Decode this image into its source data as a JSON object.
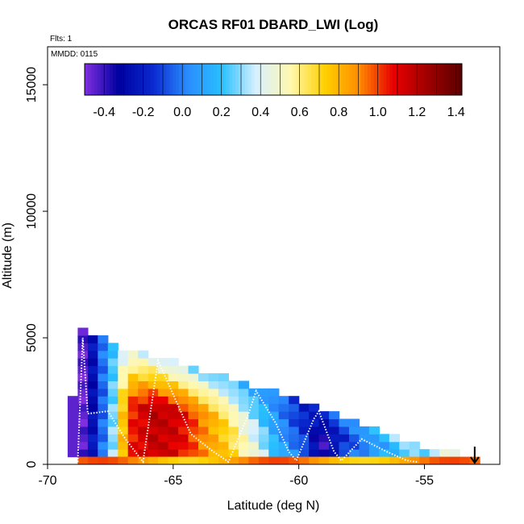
{
  "chart_data": {
    "type": "heatmap",
    "title": "ORCAS RF01 DBARD_LWI (Log)",
    "annotations": {
      "flights": "Flts: 1",
      "mmdd": "MMDD: 0115"
    },
    "xlabel": "Latitude (deg N)",
    "ylabel": "Altitude (m)",
    "xlim": [
      -70,
      -52
    ],
    "ylim": [
      0,
      16500
    ],
    "x_ticks": [
      -70,
      -65,
      -60,
      -55
    ],
    "x_tick_labels": [
      "-70",
      "-65",
      "-60",
      "-55"
    ],
    "y_ticks": [
      0,
      5000,
      10000,
      15000
    ],
    "y_tick_labels": [
      "0",
      "5000",
      "10000",
      "15000"
    ],
    "colorbar": {
      "range": [
        -0.5,
        1.43
      ],
      "ticks": [
        -0.4,
        -0.2,
        0.0,
        0.2,
        0.4,
        0.6,
        0.8,
        1.0,
        1.2,
        1.4
      ],
      "tick_labels": [
        "-0.4",
        "-0.2",
        "0.0",
        "0.2",
        "0.4",
        "0.6",
        "0.8",
        "1.0",
        "1.2",
        "1.4"
      ],
      "colors": [
        "#7f2fe0",
        "#0000a0",
        "#0a2ad0",
        "#2a8cff",
        "#28c0ff",
        "#d8f0ff",
        "#fff8b0",
        "#ffd000",
        "#ff8c00",
        "#e80000",
        "#a00000",
        "#5a0000"
      ]
    },
    "grid": {
      "lat_step": 0.4,
      "alt_step": 300
    },
    "envelope": [
      [
        -68.8,
        5200
      ],
      [
        -68.0,
        4900
      ],
      [
        -67.0,
        4500
      ],
      [
        -66.0,
        4250
      ],
      [
        -65.0,
        3950
      ],
      [
        -64.0,
        3650
      ],
      [
        -63.0,
        3350
      ],
      [
        -62.0,
        3050
      ],
      [
        -61.0,
        2750
      ],
      [
        -60.0,
        2400
      ],
      [
        -59.0,
        2050
      ],
      [
        -58.0,
        1700
      ],
      [
        -57.0,
        1300
      ],
      [
        -56.0,
        950
      ],
      [
        -55.0,
        600
      ],
      [
        -54.0,
        350
      ],
      [
        -53.0,
        200
      ]
    ],
    "value_profile": {
      "lat": [
        -69.0,
        -68.6,
        -68.0,
        -67.5,
        -67.0,
        -66.0,
        -65.0,
        -64.0,
        -63.0,
        -62.0,
        -61.0,
        -60.0,
        -59.3,
        -58.6,
        -57.5,
        -56.0,
        -54.0
      ],
      "low_layer": [
        -0.45,
        -0.2,
        0.1,
        0.5,
        1.15,
        1.25,
        1.2,
        1.0,
        0.85,
        0.6,
        0.3,
        0.1,
        -0.35,
        0.0,
        0.2,
        0.4,
        0.6
      ],
      "mid_layer": [
        -0.45,
        -0.3,
        0.05,
        0.45,
        1.1,
        1.3,
        1.25,
        1.0,
        0.75,
        0.45,
        0.15,
        -0.05,
        -0.3,
        -0.1,
        0.1,
        0.3,
        0.5
      ],
      "top_layer": [
        -0.4,
        -0.25,
        0.1,
        0.35,
        0.5,
        0.45,
        0.4,
        0.35,
        0.3,
        0.2,
        0.1,
        -0.1,
        0.0,
        0.1,
        0.3,
        0.5,
        0.6
      ]
    },
    "surface_value": 0.85,
    "flight_track": [
      [
        -68.8,
        100
      ],
      [
        -68.6,
        5000
      ],
      [
        -68.4,
        2000
      ],
      [
        -67.6,
        2100
      ],
      [
        -66.9,
        1000
      ],
      [
        -66.2,
        100
      ],
      [
        -65.6,
        4100
      ],
      [
        -64.3,
        1200
      ],
      [
        -63.4,
        500
      ],
      [
        -62.8,
        100
      ],
      [
        -62.0,
        2000
      ],
      [
        -61.7,
        2900
      ],
      [
        -60.9,
        1600
      ],
      [
        -60.4,
        500
      ],
      [
        -60.1,
        150
      ],
      [
        -59.4,
        1800
      ],
      [
        -59.2,
        2100
      ],
      [
        -58.6,
        500
      ],
      [
        -58.3,
        150
      ],
      [
        -57.5,
        1000
      ],
      [
        -56.5,
        500
      ],
      [
        -55.7,
        150
      ],
      [
        -55.3,
        100
      ]
    ],
    "arrow_lat": -53.0
  }
}
